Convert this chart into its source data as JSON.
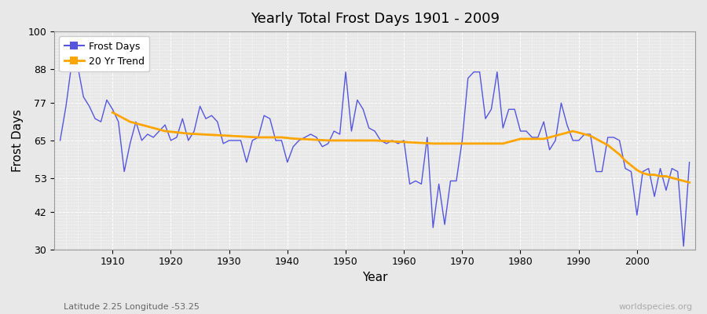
{
  "title": "Yearly Total Frost Days 1901 - 2009",
  "xlabel": "Year",
  "ylabel": "Frost Days",
  "subtitle": "Latitude 2.25 Longitude -53.25",
  "watermark": "worldspecies.org",
  "ylim": [
    30,
    100
  ],
  "yticks": [
    30,
    42,
    53,
    65,
    77,
    88,
    100
  ],
  "xlim": [
    1900,
    2010
  ],
  "xticks": [
    1910,
    1920,
    1930,
    1940,
    1950,
    1960,
    1970,
    1980,
    1990,
    2000
  ],
  "line_color": "#5555dd",
  "trend_color": "#FFA500",
  "bg_color": "#e8e8e8",
  "fig_color": "#e8e8e8",
  "years": [
    1901,
    1902,
    1903,
    1904,
    1905,
    1906,
    1907,
    1908,
    1909,
    1910,
    1911,
    1912,
    1913,
    1914,
    1915,
    1916,
    1917,
    1918,
    1919,
    1920,
    1921,
    1922,
    1923,
    1924,
    1925,
    1926,
    1927,
    1928,
    1929,
    1930,
    1931,
    1932,
    1933,
    1934,
    1935,
    1936,
    1937,
    1938,
    1939,
    1940,
    1941,
    1942,
    1943,
    1944,
    1945,
    1946,
    1947,
    1948,
    1949,
    1950,
    1951,
    1952,
    1953,
    1954,
    1955,
    1956,
    1957,
    1958,
    1959,
    1960,
    1961,
    1962,
    1963,
    1964,
    1965,
    1966,
    1967,
    1968,
    1969,
    1970,
    1971,
    1972,
    1973,
    1974,
    1975,
    1976,
    1977,
    1978,
    1979,
    1980,
    1981,
    1982,
    1983,
    1984,
    1985,
    1986,
    1987,
    1988,
    1989,
    1990,
    1991,
    1992,
    1993,
    1994,
    1995,
    1996,
    1997,
    1998,
    1999,
    2000,
    2001,
    2002,
    2003,
    2004,
    2005,
    2006,
    2007,
    2008,
    2009
  ],
  "frost_days": [
    65,
    76,
    90,
    89,
    79,
    76,
    72,
    71,
    78,
    75,
    71,
    55,
    64,
    71,
    65,
    67,
    66,
    68,
    70,
    65,
    66,
    72,
    65,
    68,
    76,
    72,
    73,
    71,
    64,
    65,
    65,
    65,
    58,
    65,
    66,
    73,
    72,
    65,
    65,
    58,
    63,
    65,
    66,
    67,
    66,
    63,
    64,
    68,
    67,
    87,
    68,
    78,
    75,
    69,
    68,
    65,
    64,
    65,
    64,
    65,
    51,
    52,
    51,
    66,
    37,
    51,
    38,
    52,
    52,
    65,
    85,
    87,
    87,
    72,
    75,
    87,
    69,
    75,
    75,
    68,
    68,
    66,
    66,
    71,
    62,
    65,
    77,
    70,
    65,
    65,
    67,
    67,
    55,
    55,
    66,
    66,
    65,
    56,
    55,
    41,
    55,
    56,
    47,
    56,
    49,
    56,
    55,
    31,
    58
  ],
  "trend_years": [
    1910,
    1911,
    1912,
    1913,
    1914,
    1915,
    1916,
    1917,
    1918,
    1919,
    1920,
    1921,
    1922,
    1923,
    1924,
    1925,
    1926,
    1927,
    1928,
    1929,
    1930,
    1931,
    1932,
    1933,
    1934,
    1935,
    1936,
    1937,
    1938,
    1939,
    1940,
    1941,
    1942,
    1943,
    1944,
    1945,
    1946,
    1947,
    1948,
    1949,
    1950,
    1951,
    1952,
    1953,
    1954,
    1955,
    1956,
    1957,
    1958,
    1959,
    1960,
    1961,
    1962,
    1963,
    1964,
    1965,
    1966,
    1967,
    1968,
    1969,
    1970,
    1971,
    1972,
    1973,
    1974,
    1975,
    1976,
    1977,
    1978,
    1979,
    1980,
    1981,
    1982,
    1983,
    1984,
    1985,
    1986,
    1987,
    1988,
    1989,
    1990,
    1991,
    1992,
    1993,
    1994,
    1995,
    1996,
    1997,
    1998,
    1999,
    2000,
    2001,
    2002,
    2003,
    2004,
    2005,
    2006,
    2007,
    2008,
    2009
  ],
  "trend_values": [
    74.0,
    73.0,
    72.0,
    71.0,
    70.5,
    70.0,
    69.5,
    69.0,
    68.5,
    68.0,
    67.8,
    67.6,
    67.4,
    67.2,
    67.1,
    67.0,
    66.9,
    66.8,
    66.7,
    66.6,
    66.5,
    66.4,
    66.3,
    66.2,
    66.1,
    66.0,
    66.0,
    66.0,
    66.0,
    66.0,
    65.8,
    65.6,
    65.5,
    65.4,
    65.3,
    65.2,
    65.1,
    65.0,
    65.0,
    65.0,
    65.0,
    65.0,
    65.0,
    65.0,
    65.0,
    65.0,
    64.9,
    64.8,
    64.7,
    64.6,
    64.5,
    64.4,
    64.3,
    64.2,
    64.1,
    64.0,
    64.0,
    64.0,
    64.0,
    64.0,
    64.0,
    64.0,
    64.0,
    64.0,
    64.0,
    64.0,
    64.0,
    64.0,
    64.5,
    65.0,
    65.5,
    65.5,
    65.5,
    65.5,
    65.5,
    66.0,
    66.5,
    67.0,
    67.5,
    68.0,
    67.5,
    67.0,
    66.5,
    65.5,
    64.5,
    63.5,
    62.0,
    60.5,
    58.5,
    57.0,
    55.5,
    54.5,
    54.0,
    54.0,
    53.5,
    53.5,
    53.0,
    52.5,
    52.0,
    51.5
  ]
}
